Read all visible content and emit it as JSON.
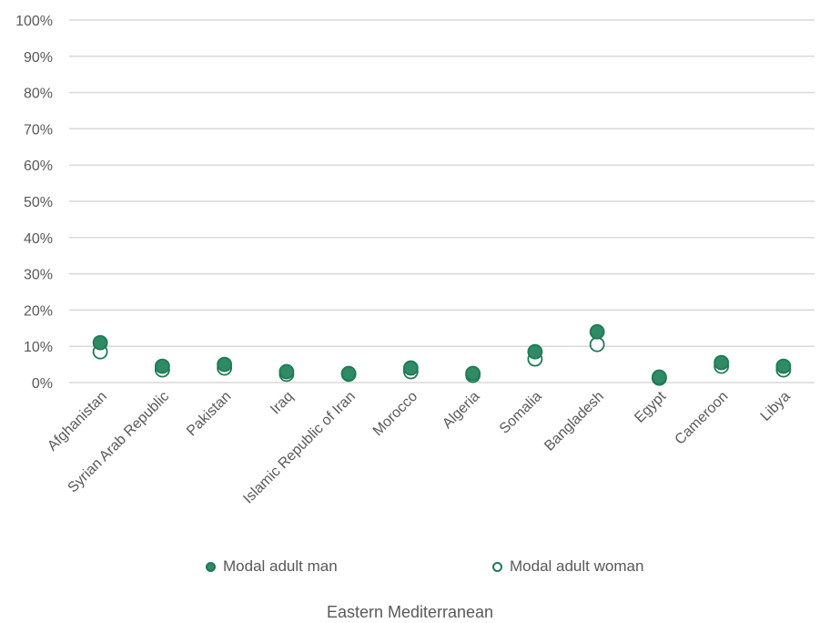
{
  "chart_data": {
    "type": "scatter",
    "categories": [
      "Afghanistan",
      "Syrian Arab Republic",
      "Pakistan",
      "Iraq",
      "Islamic Republic of Iran",
      "Morocco",
      "Algeria",
      "Somalia",
      "Bangladesh",
      "Egypt",
      "Cameroon",
      "Libya"
    ],
    "series": [
      {
        "name": "Modal adult man",
        "values": [
          11,
          4.5,
          5,
          3,
          2.5,
          4,
          2.5,
          8.5,
          14,
          1.5,
          5.5,
          4.5
        ],
        "color": "#2e8b63",
        "marker": "filled-circle"
      },
      {
        "name": "Modal adult woman",
        "values": [
          8.5,
          3.5,
          4,
          2.3,
          2.3,
          3,
          2,
          6.5,
          10.5,
          1.2,
          4.5,
          3.5
        ],
        "color": "#1e7a56",
        "marker": "hollow-circle"
      }
    ],
    "yticks": [
      "0%",
      "10%",
      "20%",
      "30%",
      "40%",
      "50%",
      "60%",
      "70%",
      "80%",
      "90%",
      "100%"
    ],
    "ylim": [
      0,
      100
    ],
    "grid": true,
    "legend_position": "bottom",
    "xlabel": "Eastern Mediterranean"
  }
}
